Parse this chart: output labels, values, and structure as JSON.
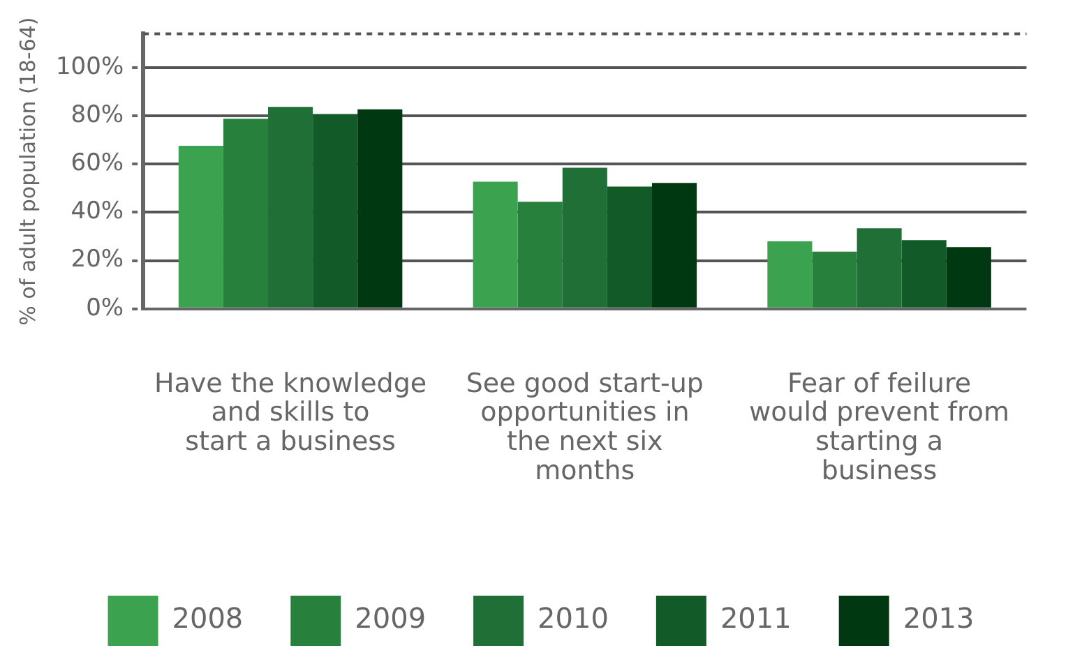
{
  "chart_data": {
    "type": "bar",
    "ylabel": "% of adult population (18-64)",
    "categories": [
      "Have the knowledge and skills to start a business",
      "See good start-up opportunities in the next six months",
      "Fear of feilure would prevent from starting a business"
    ],
    "series": [
      {
        "name": "2008",
        "color": "#3ba34f",
        "values": [
          67.6,
          52.7,
          28
        ]
      },
      {
        "name": "2009",
        "color": "#27803c",
        "values": [
          78.8,
          44.4,
          23.7
        ]
      },
      {
        "name": "2010",
        "color": "#206f37",
        "values": [
          83.7,
          58.5,
          33.4
        ]
      },
      {
        "name": "2011",
        "color": "#125a28",
        "values": [
          80.7,
          50.7,
          28.5
        ]
      },
      {
        "name": "2013",
        "color": "#003811",
        "values": [
          82.7,
          52.2,
          25.6
        ]
      }
    ],
    "ylim": [
      0,
      114
    ],
    "yticks": [
      {
        "value": 0,
        "label": "0%"
      },
      {
        "value": 20,
        "label": "20%"
      },
      {
        "value": 40,
        "label": "40%"
      },
      {
        "value": 60,
        "label": "60%"
      },
      {
        "value": 80,
        "label": "80%"
      },
      {
        "value": 100,
        "label": "100%"
      }
    ],
    "grid": "y",
    "legend": "bottom"
  }
}
